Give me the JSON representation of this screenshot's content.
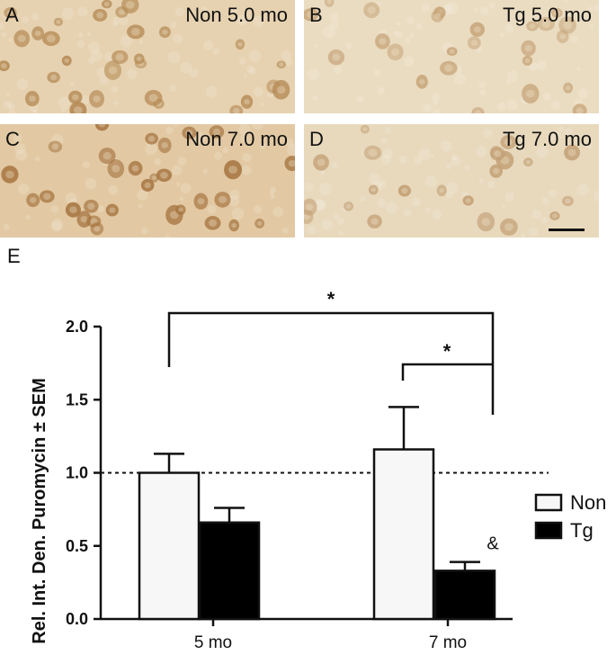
{
  "panels": [
    {
      "label": "A",
      "title": "Non 5.0 mo",
      "tone": "#e6d2b0",
      "cell": "#b58a55",
      "density": 30
    },
    {
      "label": "B",
      "title": "Tg 5.0 mo",
      "tone": "#eadcc1",
      "cell": "#c7a57a",
      "density": 24
    },
    {
      "label": "C",
      "title": "Non 7.0 mo",
      "tone": "#e2c9a3",
      "cell": "#a67440",
      "density": 30
    },
    {
      "label": "D",
      "title": "Tg 7.0 mo",
      "tone": "#e8d9bd",
      "cell": "#c3a075",
      "density": 22
    }
  ],
  "colors": {
    "non": "#f7f7f7",
    "tg": "#000000"
  },
  "chart_data": {
    "type": "bar",
    "panel_label": "E",
    "categories": [
      "5 mo",
      "7 mo"
    ],
    "series": [
      {
        "name": "Non",
        "values": [
          1.0,
          1.16
        ],
        "errors": [
          0.13,
          0.29
        ]
      },
      {
        "name": "Tg",
        "values": [
          0.66,
          0.33
        ],
        "errors": [
          0.1,
          0.06
        ]
      }
    ],
    "ylabel": "Rel. Int. Den. Puromycin ± SEM",
    "ylim": [
      0,
      2.0
    ],
    "yticks": [
      "0.0",
      "0.5",
      "1.0",
      "1.5",
      "2.0"
    ],
    "reference_line": 1.0,
    "annotations": {
      "sig_outer": "*",
      "sig_inner": "*",
      "tg_7mo": "&"
    },
    "legend_position": "right"
  }
}
